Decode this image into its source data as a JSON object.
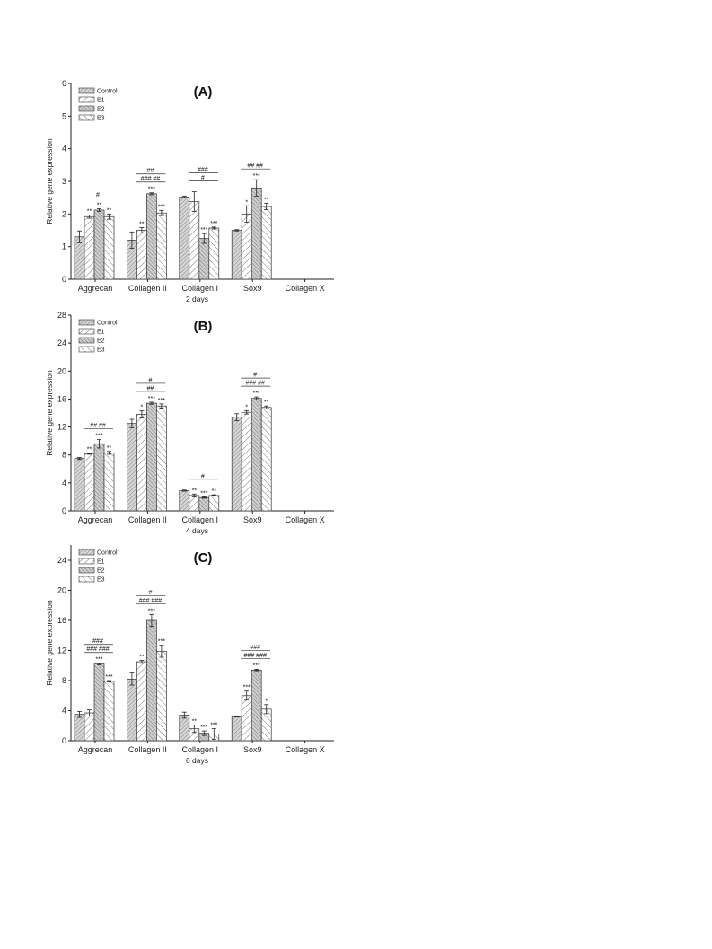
{
  "chart_data": [
    {
      "type": "bar",
      "title": "(A)",
      "xlabel": "2 days",
      "ylabel": "Relative gene expression",
      "ylim": [
        0,
        6
      ],
      "yticks": [
        "0",
        "1",
        "2",
        "3",
        "4",
        "5",
        "6"
      ],
      "categories": [
        "Aggrecan",
        "Collagen II",
        "Collagen I",
        "Sox9",
        "Collagen X"
      ],
      "legend_position": "top-left",
      "series": [
        {
          "name": "Control",
          "values": [
            1.3,
            1.2,
            2.52,
            1.5,
            null
          ],
          "errors": [
            0.18,
            0.25,
            0.03,
            0.02,
            null
          ]
        },
        {
          "name": "E1",
          "values": [
            1.92,
            1.5,
            2.38,
            2.0,
            null
          ],
          "errors": [
            0.05,
            0.08,
            0.3,
            0.25,
            null
          ]
        },
        {
          "name": "E2",
          "values": [
            2.12,
            2.62,
            1.25,
            2.8,
            null
          ],
          "errors": [
            0.04,
            0.03,
            0.15,
            0.25,
            null
          ]
        },
        {
          "name": "E3",
          "values": [
            1.92,
            2.03,
            1.57,
            2.23,
            null
          ],
          "errors": [
            0.08,
            0.08,
            0.03,
            0.1,
            null
          ]
        }
      ],
      "stars": [
        [
          "**",
          "**",
          "**"
        ],
        [
          "**",
          "***",
          "***"
        ],
        [
          "",
          "***",
          "***"
        ],
        [
          "*",
          "***",
          "**"
        ],
        [
          "",
          "",
          ""
        ]
      ],
      "hash_rows": [
        {
          "group": 0,
          "rows": [
            {
              "text": "#"
            }
          ]
        },
        {
          "group": 1,
          "rows": [
            {
              "text": "### ##"
            },
            {
              "text": "##"
            }
          ]
        },
        {
          "group": 2,
          "rows": [
            {
              "text": "#"
            },
            {
              "text": "###"
            }
          ]
        },
        {
          "group": 3,
          "rows": [
            {
              "text": "##  ##"
            }
          ]
        }
      ],
      "annotations": [
        "###"
      ]
    },
    {
      "type": "bar",
      "title": "(B)",
      "xlabel": "4 days",
      "ylabel": "Relative gene expression",
      "ylim": [
        0,
        28
      ],
      "yticks": [
        "0",
        "4",
        "8",
        "12",
        "16",
        "20",
        "24",
        "28"
      ],
      "categories": [
        "Aggrecan",
        "Collagen II",
        "Collagen I",
        "Sox9",
        "Collagen X"
      ],
      "legend_position": "top-left",
      "series": [
        {
          "name": "Control",
          "values": [
            7.5,
            12.5,
            2.9,
            13.4,
            null
          ],
          "errors": [
            0.15,
            0.6,
            0.08,
            0.5,
            null
          ]
        },
        {
          "name": "E1",
          "values": [
            8.2,
            13.8,
            2.2,
            14.1,
            null
          ],
          "errors": [
            0.1,
            0.5,
            0.2,
            0.25,
            null
          ]
        },
        {
          "name": "E2",
          "values": [
            9.6,
            15.4,
            1.9,
            16.1,
            null
          ],
          "errors": [
            0.6,
            0.15,
            0.1,
            0.2,
            null
          ]
        },
        {
          "name": "E3",
          "values": [
            8.3,
            15.0,
            2.2,
            14.8,
            null
          ],
          "errors": [
            0.2,
            0.3,
            0.1,
            0.2,
            null
          ]
        }
      ],
      "stars": [
        [
          "**",
          "***",
          "**"
        ],
        [
          "*",
          "***",
          "***"
        ],
        [
          "**",
          "***",
          "**"
        ],
        [
          "*",
          "***",
          "**"
        ],
        [
          "",
          "",
          ""
        ]
      ],
      "hash_rows": [
        {
          "group": 0,
          "rows": [
            {
              "text": "##  ##"
            }
          ]
        },
        {
          "group": 1,
          "rows": [
            {
              "text": "##"
            },
            {
              "text": "#"
            }
          ]
        },
        {
          "group": 2,
          "rows": [
            {
              "text": "#"
            }
          ]
        },
        {
          "group": 3,
          "rows": [
            {
              "text": "### ##"
            },
            {
              "text": "#"
            }
          ]
        }
      ]
    },
    {
      "type": "bar",
      "title": "(C)",
      "xlabel": "6 days",
      "ylabel": "Relative gene expression",
      "ylim": [
        0,
        26
      ],
      "yticks": [
        "0",
        "4",
        "8",
        "12",
        "16",
        "20",
        "24"
      ],
      "categories": [
        "Aggrecan",
        "Collagen II",
        "Collagen I",
        "Sox9",
        "Collagen X"
      ],
      "legend_position": "top-left",
      "series": [
        {
          "name": "Control",
          "values": [
            3.5,
            8.2,
            3.4,
            3.2,
            null
          ],
          "errors": [
            0.4,
            0.8,
            0.4,
            0.05,
            null
          ]
        },
        {
          "name": "E1",
          "values": [
            3.7,
            10.5,
            1.6,
            6.0,
            null
          ],
          "errors": [
            0.4,
            0.2,
            0.5,
            0.6,
            null
          ]
        },
        {
          "name": "E2",
          "values": [
            10.2,
            16.0,
            1.0,
            9.4,
            null
          ],
          "errors": [
            0.1,
            0.8,
            0.3,
            0.1,
            null
          ]
        },
        {
          "name": "E3",
          "values": [
            7.9,
            11.9,
            0.9,
            4.2,
            null
          ],
          "errors": [
            0.1,
            0.8,
            0.7,
            0.6,
            null
          ]
        }
      ],
      "stars": [
        [
          "",
          "***",
          "***"
        ],
        [
          "**",
          "***",
          "***"
        ],
        [
          "**",
          "***",
          "***"
        ],
        [
          "***",
          "***",
          "*"
        ],
        [
          "",
          "",
          ""
        ]
      ],
      "hash_rows": [
        {
          "group": 0,
          "rows": [
            {
              "text": "### ###"
            },
            {
              "text": "###"
            }
          ]
        },
        {
          "group": 1,
          "rows": [
            {
              "text": "### ###"
            },
            {
              "text": "#"
            }
          ]
        },
        {
          "group": 3,
          "rows": [
            {
              "text": "### ###"
            },
            {
              "text": "###"
            }
          ]
        }
      ]
    }
  ]
}
